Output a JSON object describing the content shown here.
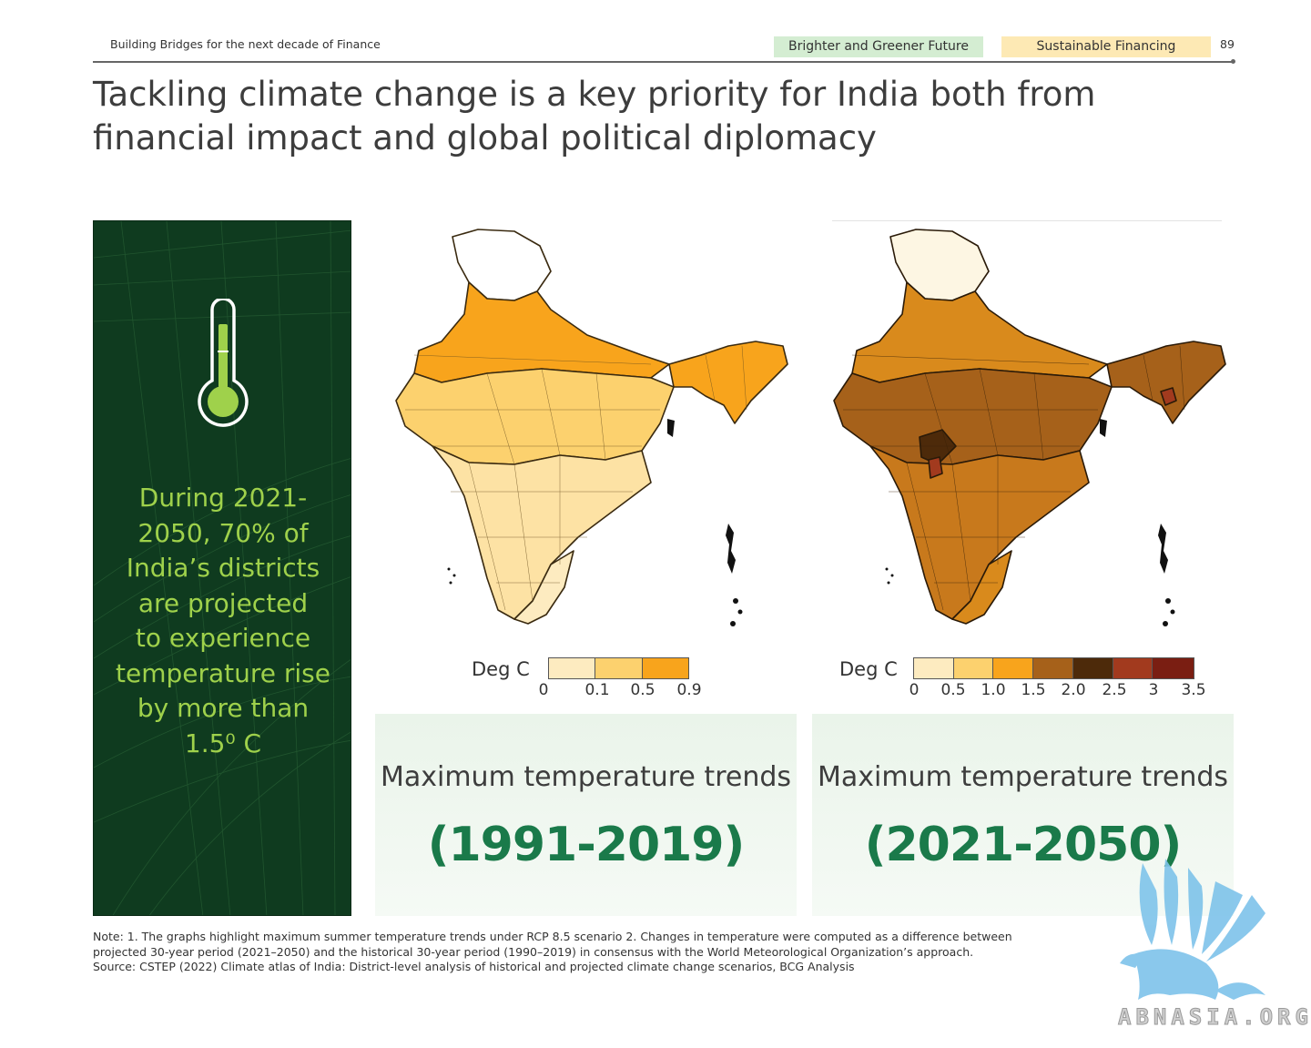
{
  "header": {
    "left_text": "Building Bridges for the next decade of Finance",
    "tags": [
      {
        "label": "Brighter and Greener Future",
        "color": "#d4edd2"
      },
      {
        "label": "Sustainable Financing",
        "color": "#fde9b4"
      }
    ],
    "page_number": "89"
  },
  "title": "Tackling climate change is a key priority for India both from financial impact and global political diplomacy",
  "side_panel": {
    "icon": "thermometer-icon",
    "callout_lines": [
      "During 2021-",
      "2050, 70% of",
      "India’s districts",
      "are projected",
      "to experience",
      "temperature rise",
      "by more than",
      "1.5⁰ C"
    ]
  },
  "maps": [
    {
      "legend_label": "Deg C",
      "legend_colors": [
        "#fdebc0",
        "#fcd16e",
        "#f8a41c"
      ],
      "legend_ticks": [
        "0",
        "0.1",
        "0.5",
        "0.9"
      ],
      "panel_title": "Maximum temperature trends",
      "panel_years": "(1991-2019)"
    },
    {
      "legend_label": "Deg C",
      "legend_colors": [
        "#fdebc0",
        "#fcd16e",
        "#f8a41c",
        "#a6611a",
        "#4d2a0a",
        "#a23a1e",
        "#7a1e12"
      ],
      "legend_ticks": [
        "0",
        "0.5",
        "1.0",
        "1.5",
        "2.0",
        "2.5",
        "3",
        "3.5"
      ],
      "panel_title": "Maximum temperature trends",
      "panel_years": "(2021-2050)"
    }
  ],
  "notes": [
    "Note: 1. The graphs highlight maximum summer temperature trends under RCP 8.5 scenario 2. Changes in temperature were computed as a difference between",
    "projected 30-year period (2021–2050) and the historical 30-year period (1990–2019) in consensus with the World Meteorological Organization’s approach.",
    "Source: CSTEP (2022) Climate atlas of India: District-level analysis of historical and projected climate change scenarios, BCG Analysis"
  ],
  "watermark": {
    "icon": "griffin-logo-icon",
    "text": "ABNASIA.ORG"
  }
}
